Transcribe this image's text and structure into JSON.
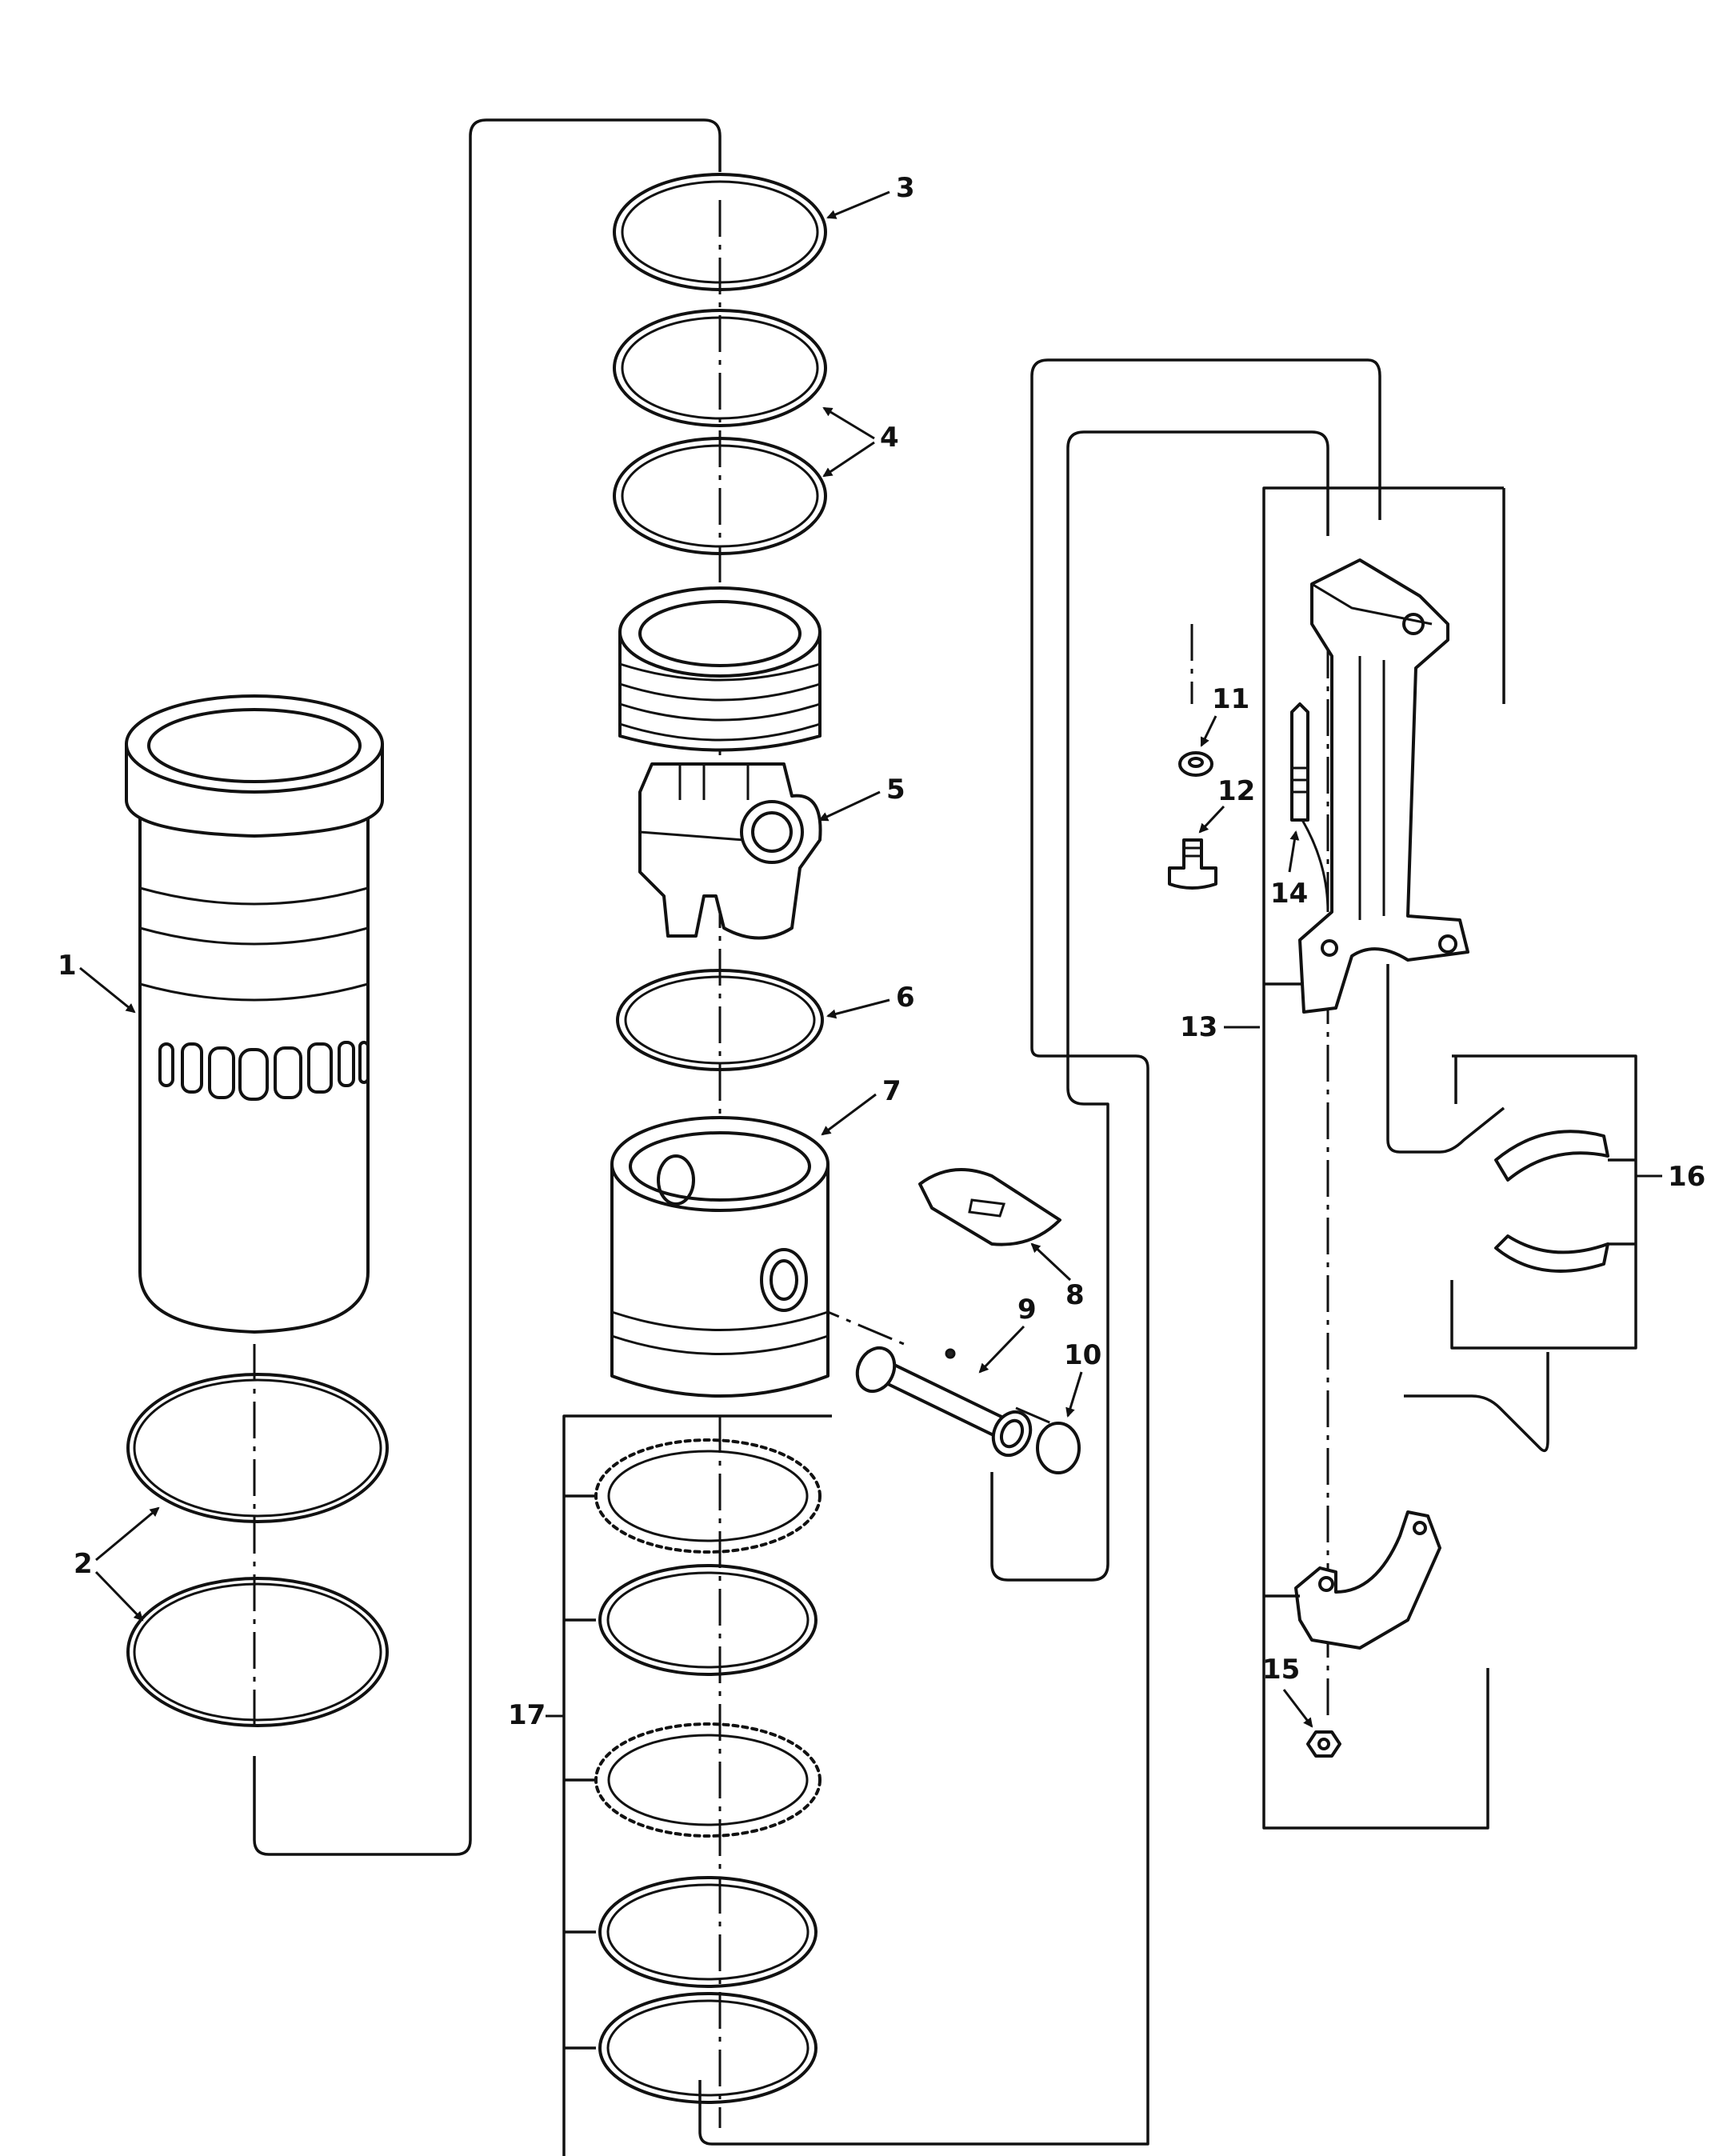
{
  "callouts": {
    "c1": "1",
    "c2": "2",
    "c3": "3",
    "c4": "4",
    "c5": "5",
    "c6": "6",
    "c7": "7",
    "c8": "8",
    "c9": "9",
    "c10": "10",
    "c11": "11",
    "c12": "12",
    "c13": "13",
    "c14": "14",
    "c15": "15",
    "c16": "16",
    "c17": "17"
  },
  "colors": {
    "ink": "#111111",
    "paper": "#ffffff"
  }
}
